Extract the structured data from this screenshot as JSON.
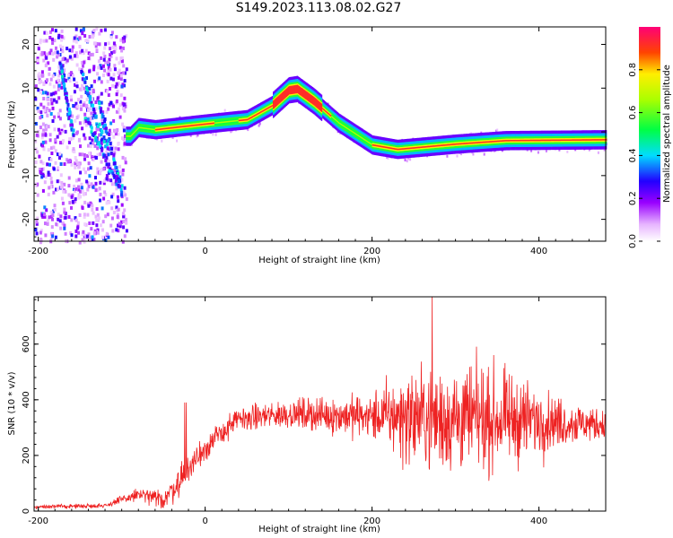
{
  "title": "S149.2023.113.08.02.G27",
  "chart_data": [
    {
      "type": "heatmap",
      "xlabel": "Height of straight line (km)",
      "ylabel": "Frequency (Hz)",
      "xlim": [
        -205,
        480
      ],
      "ylim": [
        -25,
        24
      ],
      "xticks": [
        -200,
        0,
        200,
        400
      ],
      "yticks": [
        -20,
        -10,
        0,
        10,
        20
      ],
      "colorbar": {
        "label": "Normalized spectral amplitude",
        "range": [
          0,
          1
        ],
        "ticks": [
          "0.0",
          "0.2",
          "0.4",
          "0.6",
          "0.8"
        ],
        "tick_values": [
          0,
          0.2,
          0.4,
          0.6,
          0.8
        ]
      },
      "ridge": {
        "description_points": [
          [
            -90,
            -1
          ],
          [
            -80,
            1
          ],
          [
            -60,
            0.5
          ],
          [
            0,
            1.8
          ],
          [
            50,
            2.8
          ],
          [
            80,
            6
          ],
          [
            100,
            9.5
          ],
          [
            110,
            9.8
          ],
          [
            130,
            7
          ],
          [
            160,
            2
          ],
          [
            200,
            -3
          ],
          [
            230,
            -4
          ],
          [
            300,
            -2.8
          ],
          [
            360,
            -2
          ],
          [
            480,
            -1.8
          ]
        ],
        "scatter_region_x": [
          -205,
          -95
        ],
        "scatter_region_freq": [
          -25,
          24
        ]
      }
    },
    {
      "type": "line",
      "xlabel": "Height of straight line (km)",
      "ylabel": "SNR (10 * v/v)",
      "xlim": [
        -205,
        480
      ],
      "ylim": [
        0,
        770
      ],
      "xticks": [
        -200,
        0,
        200,
        400
      ],
      "yticks": [
        0,
        200,
        400,
        600
      ],
      "series": [
        {
          "color": "#ee2222",
          "envelope": [
            {
              "x": -205,
              "base": 15,
              "noise": 8
            },
            {
              "x": -120,
              "base": 20,
              "noise": 10
            },
            {
              "x": -80,
              "base": 60,
              "noise": 30
            },
            {
              "x": -50,
              "base": 40,
              "noise": 40
            },
            {
              "x": -30,
              "base": 110,
              "noise": 70
            },
            {
              "x": 0,
              "base": 230,
              "noise": 60
            },
            {
              "x": 40,
              "base": 330,
              "noise": 50
            },
            {
              "x": 100,
              "base": 350,
              "noise": 60
            },
            {
              "x": 200,
              "base": 340,
              "noise": 100
            },
            {
              "x": 240,
              "base": 340,
              "noise": 200
            },
            {
              "x": 300,
              "base": 330,
              "noise": 240
            },
            {
              "x": 380,
              "base": 330,
              "noise": 180
            },
            {
              "x": 420,
              "base": 320,
              "noise": 110
            },
            {
              "x": 480,
              "base": 310,
              "noise": 60
            }
          ],
          "peak_value": 770,
          "peak_x": 272
        }
      ]
    }
  ]
}
